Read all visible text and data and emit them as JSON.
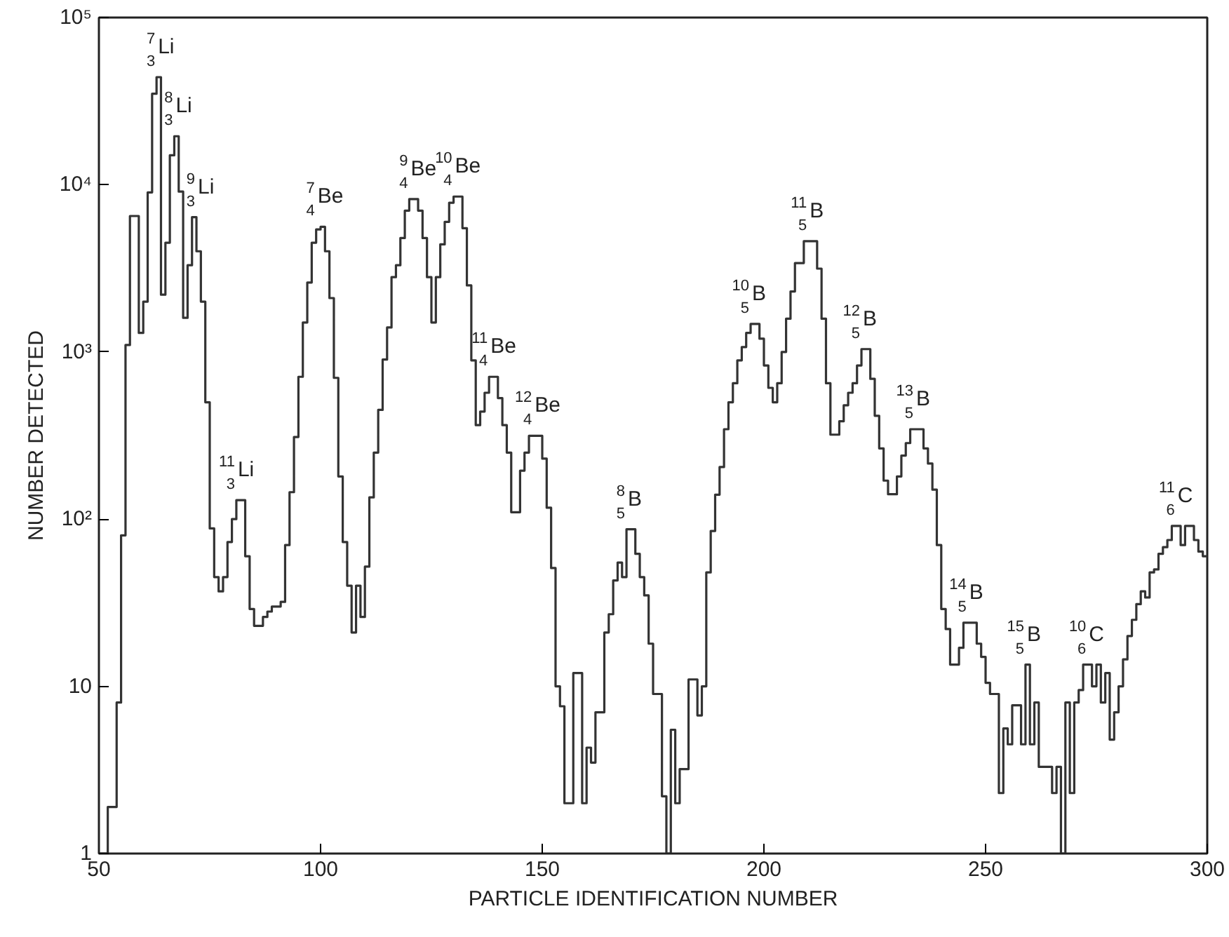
{
  "chart_data": {
    "type": "histogram",
    "xlabel": "PARTICLE IDENTIFICATION NUMBER",
    "ylabel": "NUMBER DETECTED",
    "log": "y",
    "grid": false,
    "color": "#333333",
    "xlim": [
      50,
      300
    ],
    "ylim": [
      1,
      100000
    ],
    "xticks": [
      50,
      100,
      150,
      200,
      250,
      300
    ],
    "yticks": [
      1,
      10,
      {
        "value": 100,
        "label": "10²"
      },
      {
        "value": 1000,
        "label": "10³"
      },
      {
        "value": 10000,
        "label": "10⁴"
      },
      {
        "value": 100000,
        "label": "10⁵"
      }
    ],
    "bins": [
      50,
      51,
      52,
      53,
      54,
      55,
      56,
      57,
      58,
      59,
      60,
      61,
      62,
      63,
      64,
      65,
      66,
      67,
      68,
      69,
      70,
      71,
      72,
      73,
      74,
      75,
      76,
      77,
      78,
      79,
      80,
      81,
      82,
      83,
      84,
      85,
      86,
      87,
      88,
      89,
      90,
      91,
      92,
      93,
      94,
      95,
      96,
      97,
      98,
      99,
      100,
      101,
      102,
      103,
      104,
      105,
      106,
      107,
      108,
      109,
      110,
      111,
      112,
      113,
      114,
      115,
      116,
      117,
      118,
      119,
      120,
      121,
      122,
      123,
      124,
      125,
      126,
      127,
      128,
      129,
      130,
      131,
      132,
      133,
      134,
      135,
      136,
      137,
      138,
      139,
      140,
      141,
      142,
      143,
      144,
      145,
      146,
      147,
      148,
      149,
      150,
      151,
      152,
      153,
      154,
      155,
      156,
      157,
      158,
      159,
      160,
      161,
      162,
      163,
      164,
      165,
      166,
      167,
      168,
      169,
      170,
      171,
      172,
      173,
      174,
      175,
      176,
      177,
      178,
      179,
      180,
      181,
      182,
      183,
      184,
      185,
      186,
      187,
      188,
      189,
      190,
      191,
      192,
      193,
      194,
      195,
      196,
      197,
      198,
      199,
      200,
      201,
      202,
      203,
      204,
      205,
      206,
      207,
      208,
      209,
      210,
      211,
      212,
      213,
      214,
      215,
      216,
      217,
      218,
      219,
      220,
      221,
      222,
      223,
      224,
      225,
      226,
      227,
      228,
      229,
      230,
      231,
      232,
      233,
      234,
      235,
      236,
      237,
      238,
      239,
      240,
      241,
      242,
      243,
      244,
      245,
      246,
      247,
      248,
      249,
      250,
      251,
      252,
      253,
      254,
      255,
      256,
      257,
      258,
      259,
      260,
      261,
      262,
      263,
      264,
      265,
      266,
      267,
      268,
      269,
      270,
      271,
      272,
      273,
      274,
      275,
      276,
      277,
      278,
      279,
      280,
      281,
      282,
      283,
      284,
      285,
      286,
      287,
      288,
      289,
      290,
      291,
      292,
      293,
      294,
      295,
      296,
      297,
      298,
      299,
      300
    ],
    "values": [
      1,
      1,
      1.9,
      1.9,
      8,
      80,
      1100,
      6500,
      6500,
      1300,
      2000,
      9000,
      35000,
      44000,
      2200,
      4500,
      15000,
      19500,
      9100,
      1600,
      3300,
      6400,
      4000,
      2000,
      500,
      88,
      45,
      37,
      45,
      73,
      100,
      130,
      130,
      60,
      29,
      23,
      23,
      26,
      28,
      30,
      30,
      32,
      70,
      145,
      310,
      710,
      1500,
      2600,
      4500,
      5400,
      5600,
      4000,
      2100,
      700,
      180,
      73,
      40,
      21,
      40,
      26,
      52,
      135,
      250,
      450,
      900,
      1400,
      2800,
      3300,
      4800,
      7000,
      8200,
      8200,
      7000,
      4800,
      2800,
      1500,
      2800,
      4400,
      6000,
      7800,
      8500,
      8500,
      5500,
      2500,
      890,
      365,
      440,
      570,
      710,
      710,
      530,
      365,
      250,
      110,
      110,
      195,
      250,
      315,
      315,
      315,
      230,
      117,
      51,
      10,
      7.6,
      2,
      2,
      12,
      12,
      2,
      4.3,
      3.5,
      7,
      7,
      21,
      27,
      43,
      55,
      45,
      87,
      87,
      62,
      45,
      35,
      18,
      9,
      9,
      2.2,
      1,
      5.5,
      2,
      3.2,
      3.2,
      11,
      11,
      6.7,
      10,
      48,
      85,
      140,
      205,
      345,
      500,
      650,
      890,
      1070,
      1300,
      1470,
      1470,
      1200,
      830,
      610,
      500,
      650,
      1000,
      1580,
      2300,
      3400,
      3400,
      4600,
      4600,
      4600,
      3150,
      1580,
      650,
      320,
      320,
      385,
      480,
      570,
      650,
      830,
      1040,
      1040,
      690,
      415,
      265,
      170,
      141,
      141,
      180,
      240,
      285,
      345,
      345,
      345,
      265,
      215,
      150,
      70,
      29,
      22,
      13.5,
      13.5,
      17,
      24,
      24,
      24,
      18,
      15,
      10.5,
      9,
      9,
      2.3,
      5.6,
      4.5,
      7.7,
      7.7,
      4.5,
      13.5,
      4.5,
      8,
      3.3,
      3.3,
      3.3,
      2.3,
      3.3,
      1,
      8,
      2.3,
      8,
      9.5,
      13.5,
      13.5,
      10,
      13.5,
      8,
      12,
      4.8,
      7,
      10,
      14.5,
      20,
      25,
      31,
      37,
      34,
      48,
      50,
      62,
      68,
      75,
      91,
      91,
      70,
      91,
      91,
      75,
      64,
      60
    ],
    "annotations": [
      {
        "text": "$^{7}$$_{3}$Li",
        "x": 63,
        "y": 44000
      },
      {
        "text": "$^{8}$$_{3}$Li",
        "x": 67,
        "y": 19500
      },
      {
        "text": "$^{9}$$_{3}$Li",
        "x": 72,
        "y": 6400
      },
      {
        "text": "$^{11}$$_{3}$Li",
        "x": 81,
        "y": 130
      },
      {
        "text": "$^{7}$$_{4}$Be",
        "x": 99,
        "y": 5600
      },
      {
        "text": "$^{9}$$_{4}$Be",
        "x": 120,
        "y": 8200
      },
      {
        "text": "$^{10}$$_{4}$Be",
        "x": 130,
        "y": 8500
      },
      {
        "text": "$^{11}$$_{4}$Be",
        "x": 138,
        "y": 710
      },
      {
        "text": "$^{12}$$_{4}$Be",
        "x": 148,
        "y": 315
      },
      {
        "text": "$^{8}$$_{5}$B",
        "x": 169,
        "y": 87
      },
      {
        "text": "$^{10}$$_{5}$B",
        "x": 197,
        "y": 1470
      },
      {
        "text": "$^{11}$$_{5}$B",
        "x": 210,
        "y": 4600
      },
      {
        "text": "$^{12}$$_{5}$B",
        "x": 222,
        "y": 1040
      },
      {
        "text": "$^{13}$$_{5}$B",
        "x": 234,
        "y": 345
      },
      {
        "text": "$^{14}$$_{5}$B",
        "x": 246,
        "y": 24
      },
      {
        "text": "$^{15}$$_{5}$B",
        "x": 259,
        "y": 13.5
      },
      {
        "text": "$^{10}$$_{6}$C",
        "x": 273,
        "y": 13.5
      },
      {
        "text": "$^{11}$$_{6}$C",
        "x": 293,
        "y": 91
      }
    ]
  }
}
